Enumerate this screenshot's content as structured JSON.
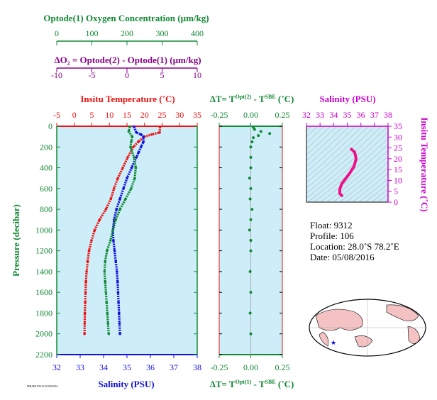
{
  "colors": {
    "temperature": "#ee1111",
    "oxygen": "#118833",
    "salinity": "#1111dd",
    "delta_o2": "#880088",
    "sal_inset": "#cc00cc",
    "panel_bg": "#cdeef8",
    "pressure_axis": "#118833"
  },
  "labels": {
    "oxygen_axis": "Optode(1) Oxygen Concentration (µm/kg)",
    "delta_o2_axis": "ΔO₂ = Optode(2) - Optode(1)   (µm/kg)",
    "temperature_axis": "Insitu Temperature (˚C)",
    "salinity_axis": "Salinity (PSU)",
    "pressure_axis": "Pressure (decibar)",
    "dt_top": "ΔT= T^Opt(2) - T^SBE (˚C)",
    "dt_bottom": "ΔT= T^Opt(1) - T^SBE (˚C)",
    "ts_salinity": "Salinity (PSU)",
    "ts_temperature": "Insitu Temperature (˚C)",
    "tiny_footer": "MBARI F9312 05/08/2016"
  },
  "info": {
    "float": "Float:  9312",
    "profile": "Profile:  106",
    "location": "Location:  28.0˚S  78.2˚E",
    "date": "Date:  05/08/2016"
  },
  "chart_data": [
    {
      "type": "line",
      "title": "Profile",
      "pressure_ticks": [
        0,
        200,
        400,
        600,
        800,
        1000,
        1200,
        1400,
        1600,
        1800,
        2000,
        2200
      ],
      "pressure_range": [
        0,
        2200
      ],
      "axes": {
        "temperature": {
          "range": [
            -5,
            35
          ],
          "ticks": [
            -5,
            0,
            5,
            10,
            15,
            20,
            25,
            30,
            35
          ]
        },
        "salinity": {
          "range": [
            32,
            38
          ],
          "ticks": [
            32,
            33,
            34,
            35,
            36,
            37,
            38
          ]
        },
        "oxygen": {
          "range": [
            0,
            400
          ],
          "ticks": [
            0,
            100,
            200,
            300,
            400
          ]
        },
        "delta_o2": {
          "range": [
            -10,
            10
          ],
          "ticks": [
            -10,
            -5,
            0,
            5,
            10
          ]
        }
      },
      "series": [
        {
          "name": "Temperature",
          "axis": "temperature",
          "pressure": [
            5,
            60,
            80,
            100,
            150,
            200,
            300,
            400,
            500,
            600,
            700,
            800,
            900,
            1000,
            1100,
            1200,
            1300,
            1400,
            1500,
            1600,
            1700,
            1800,
            1900,
            2000
          ],
          "values": [
            24.4,
            24.3,
            22.0,
            20.0,
            18.2,
            16.8,
            15.2,
            13.8,
            12.4,
            11.3,
            10.4,
            9.0,
            7.2,
            5.8,
            4.9,
            4.2,
            3.8,
            3.5,
            3.3,
            3.2,
            3.1,
            3.0,
            2.95,
            2.9
          ]
        },
        {
          "name": "Salinity",
          "axis": "salinity",
          "pressure": [
            5,
            60,
            80,
            100,
            150,
            200,
            250,
            300,
            400,
            500,
            600,
            700,
            800,
            900,
            1000,
            1100,
            1200,
            1300,
            1400,
            1500,
            1600,
            1700,
            1800,
            1900,
            2000
          ],
          "values": [
            35.3,
            35.4,
            35.6,
            35.7,
            35.7,
            35.6,
            35.5,
            35.4,
            35.2,
            35.0,
            34.85,
            34.7,
            34.55,
            34.45,
            34.4,
            34.42,
            34.47,
            34.52,
            34.57,
            34.6,
            34.62,
            34.64,
            34.66,
            34.68,
            34.7
          ]
        },
        {
          "name": "Oxygen",
          "axis": "oxygen",
          "pressure": [
            5,
            50,
            100,
            150,
            200,
            300,
            400,
            500,
            600,
            700,
            800,
            900,
            1000,
            1100,
            1200,
            1300,
            1400,
            1500,
            1600,
            1700,
            1800,
            1900,
            2000
          ],
          "values": [
            208,
            205,
            215,
            212,
            210,
            220,
            225,
            222,
            212,
            196,
            180,
            168,
            160,
            153,
            143,
            138,
            136,
            138,
            140,
            142,
            144,
            146,
            148
          ]
        }
      ]
    },
    {
      "type": "scatter",
      "title": "Temperature difference",
      "x_range": [
        -0.25,
        0.25
      ],
      "x_ticks": [
        -0.25,
        0.0,
        0.25
      ],
      "x_tick_labels": [
        "-0.25",
        "0.00",
        "0.25"
      ],
      "pressure_range": [
        0,
        2200
      ],
      "series": [
        {
          "name": "ΔT",
          "pressure": [
            10,
            30,
            50,
            70,
            90,
            110,
            150,
            200,
            300,
            400,
            500,
            600,
            700,
            800,
            900,
            1000,
            1100,
            1200,
            1400,
            1600,
            1800,
            2000
          ],
          "values": [
            0.02,
            0.03,
            0.08,
            0.15,
            0.06,
            0.02,
            0.01,
            0.0,
            0.0,
            0.0,
            -0.01,
            0.0,
            -0.005,
            0.01,
            0.0,
            -0.01,
            0.0,
            0.0,
            -0.005,
            0.0,
            -0.005,
            0.0
          ]
        }
      ]
    },
    {
      "type": "line",
      "title": "T-S diagram",
      "x_range": [
        32,
        38
      ],
      "x_ticks": [
        32,
        33,
        34,
        35,
        36,
        37,
        38
      ],
      "y_range": [
        0,
        35
      ],
      "y_ticks": [
        0,
        5,
        10,
        15,
        20,
        25,
        30,
        35
      ],
      "series": [
        {
          "name": "TS",
          "salinity": [
            35.3,
            35.55,
            35.65,
            35.5,
            35.2,
            34.9,
            34.6,
            34.45,
            34.45,
            34.6
          ],
          "temperature": [
            24.4,
            23.0,
            20.0,
            16.5,
            13.5,
            11.0,
            8.5,
            6.0,
            4.0,
            3.0
          ]
        }
      ]
    }
  ]
}
